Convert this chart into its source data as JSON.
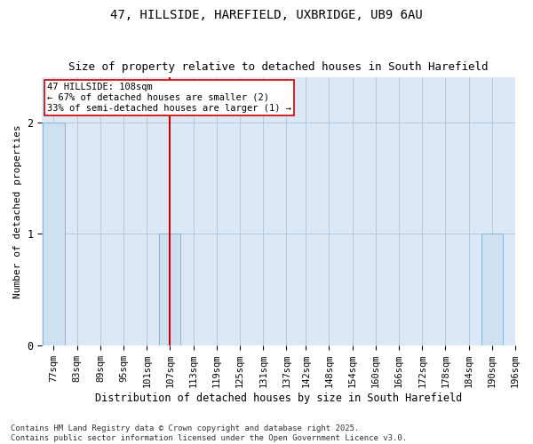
{
  "title_line1": "47, HILLSIDE, HAREFIELD, UXBRIDGE, UB9 6AU",
  "title_line2": "Size of property relative to detached houses in South Harefield",
  "xlabel": "Distribution of detached houses by size in South Harefield",
  "ylabel": "Number of detached properties",
  "footnote": "Contains HM Land Registry data © Crown copyright and database right 2025.\nContains public sector information licensed under the Open Government Licence v3.0.",
  "bins": [
    "77sqm",
    "83sqm",
    "89sqm",
    "95sqm",
    "101sqm",
    "107sqm",
    "113sqm",
    "119sqm",
    "125sqm",
    "131sqm",
    "137sqm",
    "142sqm",
    "148sqm",
    "154sqm",
    "160sqm",
    "166sqm",
    "172sqm",
    "178sqm",
    "184sqm",
    "190sqm",
    "196sqm"
  ],
  "bin_edges": [
    77,
    83,
    89,
    95,
    101,
    107,
    113,
    119,
    125,
    131,
    137,
    142,
    148,
    154,
    160,
    166,
    172,
    178,
    184,
    190,
    196
  ],
  "bar_heights": [
    2,
    0,
    0,
    0,
    0,
    1,
    0,
    0,
    0,
    0,
    0,
    0,
    0,
    0,
    0,
    0,
    0,
    0,
    0,
    1,
    0
  ],
  "bar_color": "#cce0f0",
  "bar_edge_color": "#7bafd4",
  "property_size_bin": 5,
  "property_line_color": "#cc0000",
  "annotation_text": "47 HILLSIDE: 108sqm\n← 67% of detached houses are smaller (2)\n33% of semi-detached houses are larger (1) →",
  "annotation_box_color": "#ffffff",
  "annotation_box_edge_color": "#cc0000",
  "plot_bg_color": "#dce8f5",
  "fig_bg_color": "#ffffff",
  "ylim": [
    0,
    2.4
  ],
  "yticks": [
    0,
    1,
    2
  ],
  "title_fontsize": 10,
  "subtitle_fontsize": 9,
  "annotation_fontsize": 7.5,
  "xlabel_fontsize": 8.5,
  "ylabel_fontsize": 8,
  "tick_fontsize": 7.5,
  "footnote_fontsize": 6.5
}
